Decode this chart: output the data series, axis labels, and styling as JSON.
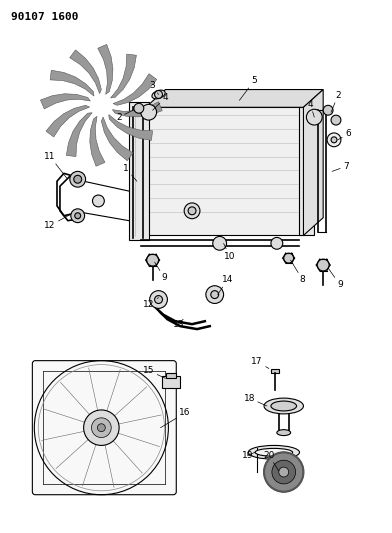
{
  "title_code": "90107 1600",
  "bg": "#ffffff",
  "lc": "#000000",
  "gray": "#888888",
  "lgray": "#cccccc",
  "fig_w": 3.92,
  "fig_h": 5.33,
  "dpi": 100,
  "title_fs": 8,
  "label_fs": 6.5
}
